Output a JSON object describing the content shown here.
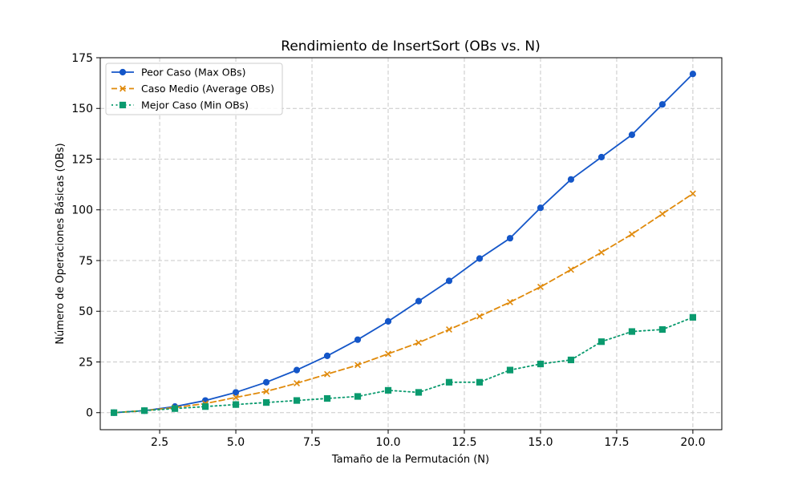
{
  "chart_data": {
    "type": "line",
    "title": "Rendimiento de InsertSort (OBs vs. N)",
    "xlabel": "Tamaño de la Permutación (N)",
    "ylabel": "Número de Operaciones Básicas (OBs)",
    "xlim": [
      0.55,
      20.95
    ],
    "ylim": [
      -8.4,
      175
    ],
    "xticks": [
      2.5,
      5.0,
      7.5,
      10.0,
      12.5,
      15.0,
      17.5,
      20.0
    ],
    "xtick_labels": [
      "2.5",
      "5.0",
      "7.5",
      "10.0",
      "12.5",
      "15.0",
      "17.5",
      "20.0"
    ],
    "yticks": [
      0,
      25,
      50,
      75,
      100,
      125,
      150,
      175
    ],
    "ytick_labels": [
      "0",
      "25",
      "50",
      "75",
      "100",
      "125",
      "150",
      "175"
    ],
    "grid": true,
    "legend_position": "top-left",
    "x": [
      1,
      2,
      3,
      4,
      5,
      6,
      7,
      8,
      9,
      10,
      11,
      12,
      13,
      14,
      15,
      16,
      17,
      18,
      19,
      20
    ],
    "series": [
      {
        "name": "Peor Caso (Max OBs)",
        "color": "#1456c8",
        "marker": "circle",
        "line_style": "solid",
        "values": [
          0,
          1,
          3,
          6,
          10,
          15,
          21,
          28,
          36,
          45,
          55,
          65,
          76,
          86,
          101,
          115,
          126,
          137,
          152,
          167
        ]
      },
      {
        "name": "Caso Medio (Average OBs)",
        "color": "#e08a0b",
        "marker": "x",
        "line_style": "dashed",
        "values": [
          0,
          1,
          2.5,
          4.5,
          7.5,
          10.5,
          14.5,
          19,
          23.5,
          29,
          34.5,
          41,
          47.5,
          54.5,
          62,
          70.5,
          79,
          88,
          98,
          108
        ]
      },
      {
        "name": "Mejor Caso (Min OBs)",
        "color": "#0a9a6e",
        "marker": "square",
        "line_style": "dotted",
        "values": [
          0,
          1,
          2,
          3,
          4,
          5,
          6,
          7,
          8,
          11,
          10,
          15,
          15,
          21,
          24,
          26,
          35,
          40,
          41,
          47
        ]
      }
    ]
  }
}
